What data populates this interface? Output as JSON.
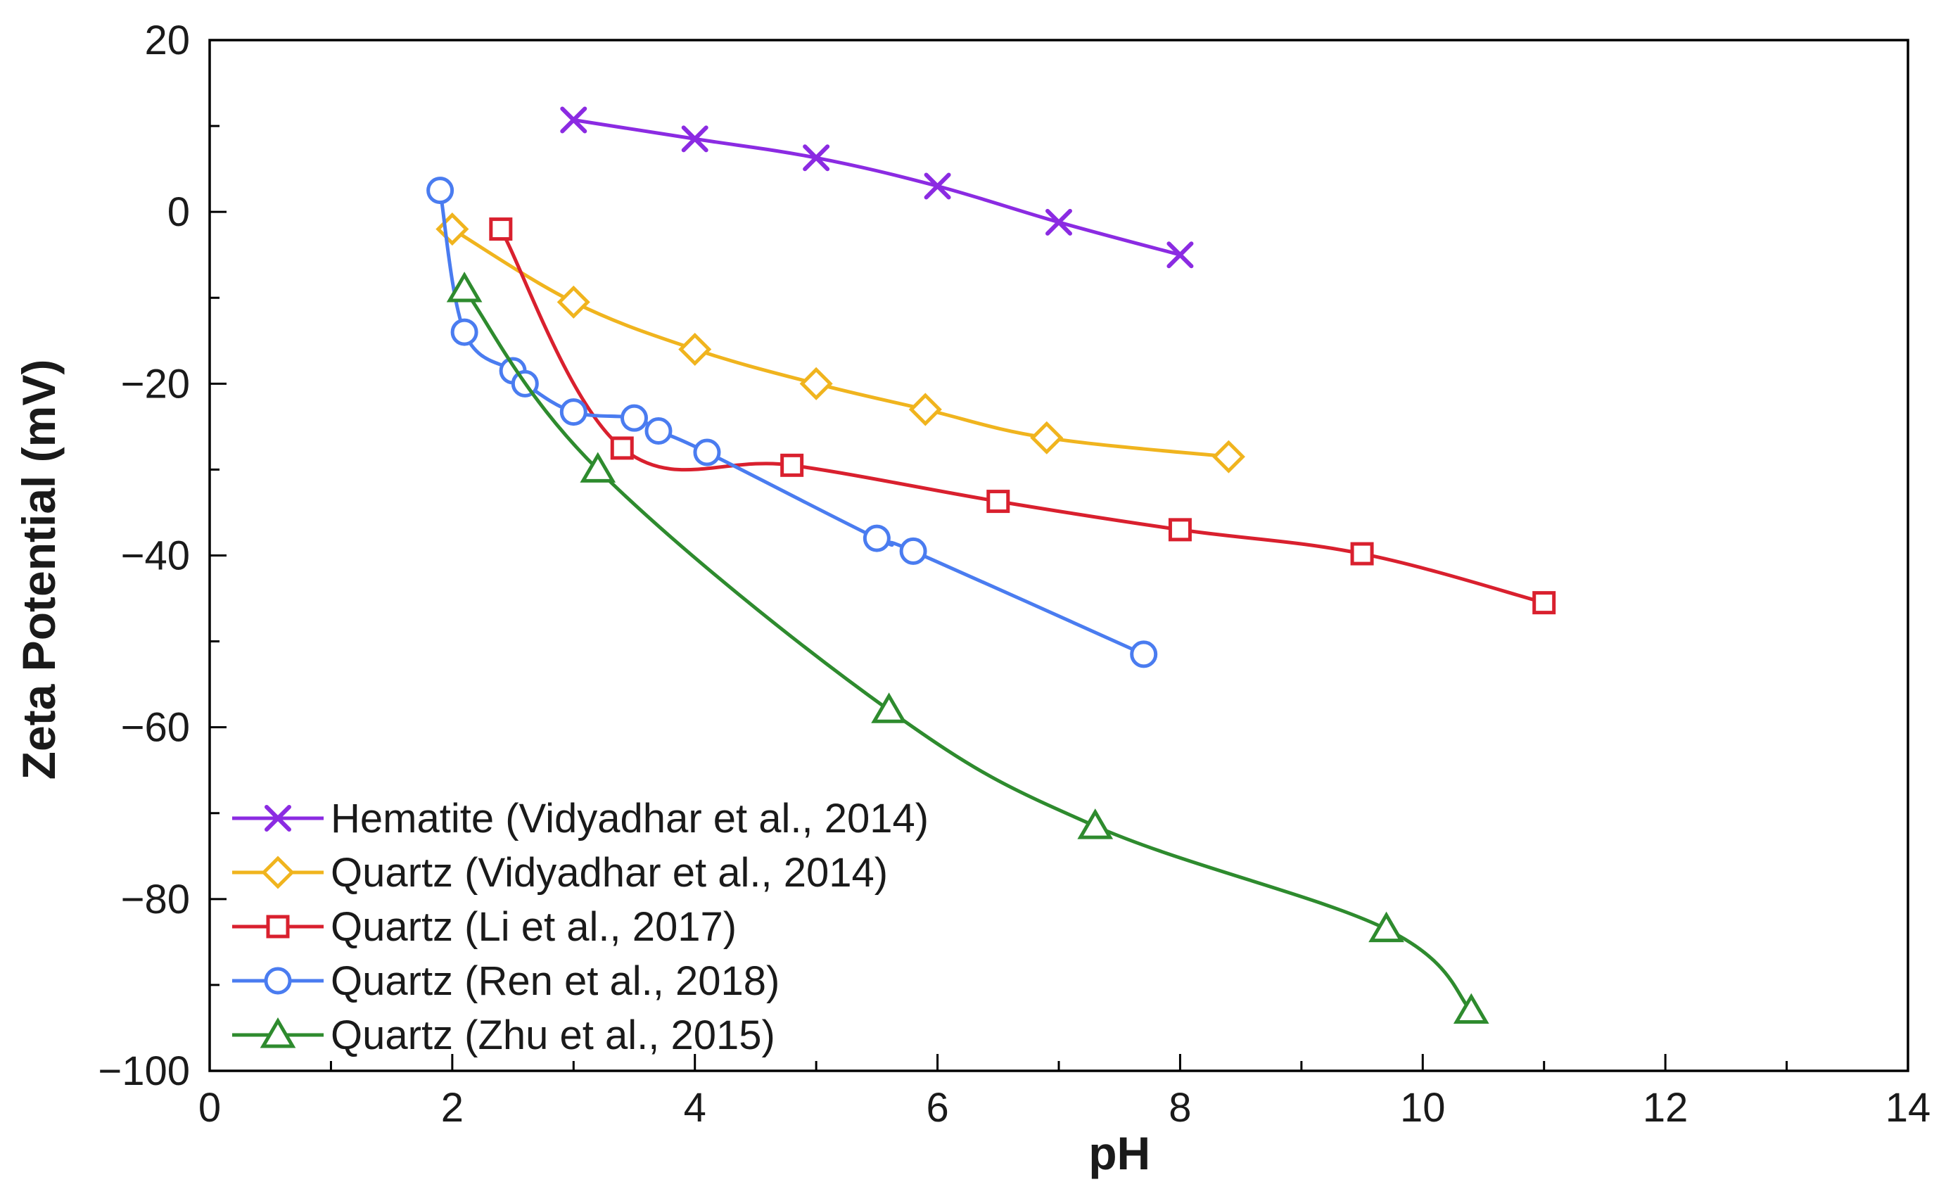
{
  "chart_data": {
    "type": "line",
    "xlabel": "pH",
    "ylabel": "Zeta Potential (mV)",
    "xlim": [
      0,
      14
    ],
    "ylim": [
      -100,
      20
    ],
    "xticks": [
      0,
      2,
      4,
      6,
      8,
      10,
      12,
      14
    ],
    "yticks": [
      -100,
      -80,
      -60,
      -40,
      -20,
      0,
      20
    ],
    "xtick_labels": [
      "0",
      "2",
      "4",
      "6",
      "8",
      "10",
      "12",
      "14"
    ],
    "ytick_labels": [
      "−100",
      "−80",
      "−60",
      "−40",
      "−20",
      "0",
      "20"
    ],
    "grid": false,
    "legend_position": "bottom-left",
    "series": [
      {
        "name": "Hematite (Vidyadhar et al., 2014)",
        "color": "#8B2BE2",
        "marker": "cross",
        "x": [
          3.0,
          4.0,
          5.0,
          6.0,
          7.0,
          8.0
        ],
        "y": [
          10.7,
          8.5,
          6.3,
          3.0,
          -1.2,
          -5.0
        ]
      },
      {
        "name": "Quartz (Vidyadhar et al., 2014)",
        "color": "#F0B41E",
        "marker": "diamond",
        "x": [
          2.0,
          3.0,
          4.0,
          5.0,
          5.9,
          6.9,
          8.4
        ],
        "y": [
          -2.0,
          -10.5,
          -16.0,
          -20.0,
          -23.0,
          -26.3,
          -28.5
        ]
      },
      {
        "name": "Quartz (Li et al., 2017)",
        "color": "#D9202E",
        "marker": "square",
        "x": [
          2.4,
          3.4,
          4.8,
          6.5,
          8.0,
          9.5,
          11.0
        ],
        "y": [
          -2.0,
          -27.5,
          -29.5,
          -33.7,
          -37.0,
          -39.8,
          -45.5
        ]
      },
      {
        "name": "Quartz (Ren et al., 2018)",
        "color": "#4A7CF0",
        "marker": "circle",
        "x": [
          1.9,
          2.1,
          2.5,
          2.6,
          3.0,
          3.5,
          3.7,
          4.1,
          5.5,
          5.8,
          7.7
        ],
        "y": [
          2.5,
          -14.0,
          -18.5,
          -20.0,
          -23.3,
          -24.0,
          -25.5,
          -28.0,
          -38.0,
          -39.5,
          -51.5
        ]
      },
      {
        "name": "Quartz (Zhu et al., 2015)",
        "color": "#2E8B2E",
        "marker": "triangle",
        "x": [
          2.1,
          3.2,
          5.6,
          7.3,
          9.7,
          10.4
        ],
        "y": [
          -9.0,
          -30.0,
          -58.0,
          -71.5,
          -83.5,
          -93.0
        ]
      }
    ]
  }
}
